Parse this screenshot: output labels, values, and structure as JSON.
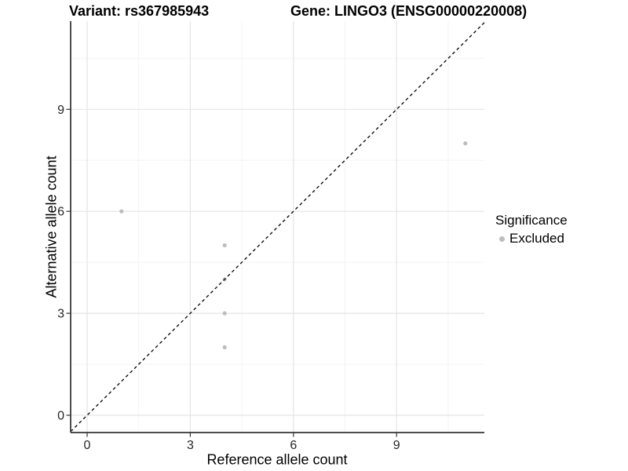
{
  "header": {
    "title_variant": "Variant: rs367985943",
    "title_gene": "Gene: LINGO3 (ENSG00000220008)"
  },
  "chart_data": {
    "type": "scatter",
    "title": "Variant: rs367985943 — Gene: LINGO3 (ENSG00000220008)",
    "xlabel": "Reference allele count",
    "ylabel": "Alternative allele count",
    "xlim": [
      -0.55,
      11.55
    ],
    "ylim": [
      -0.55,
      11.55
    ],
    "xticks": [
      0,
      3,
      6,
      9
    ],
    "yticks": [
      0,
      3,
      6,
      9
    ],
    "minor_xticks": [
      1.5,
      4.5,
      7.5,
      10.5
    ],
    "minor_yticks": [
      1.5,
      4.5,
      7.5,
      10.5
    ],
    "grid": "major+minor",
    "legend_position": "right",
    "series": [
      {
        "name": "Excluded",
        "color": "#bdbdbd",
        "points": [
          {
            "x": 1,
            "y": 6
          },
          {
            "x": 4,
            "y": 5
          },
          {
            "x": 4,
            "y": 4
          },
          {
            "x": 4,
            "y": 3
          },
          {
            "x": 4,
            "y": 2
          },
          {
            "x": 11,
            "y": 8
          }
        ]
      }
    ],
    "reference_line": {
      "type": "identity",
      "slope": 1,
      "intercept": 0,
      "style": "dashed",
      "color": "#000000"
    }
  },
  "legend": {
    "title": "Significance",
    "items": [
      {
        "label": "Excluded",
        "color": "#bdbdbd"
      }
    ]
  },
  "colors": {
    "background": "#ffffff",
    "grid_major": "#e4e4e4",
    "grid_minor": "#f2f2f2",
    "axis_line": "#4d4d4d",
    "tick_mark": "#333333",
    "tick_label": "#262626",
    "point": "#bdbdbd"
  }
}
